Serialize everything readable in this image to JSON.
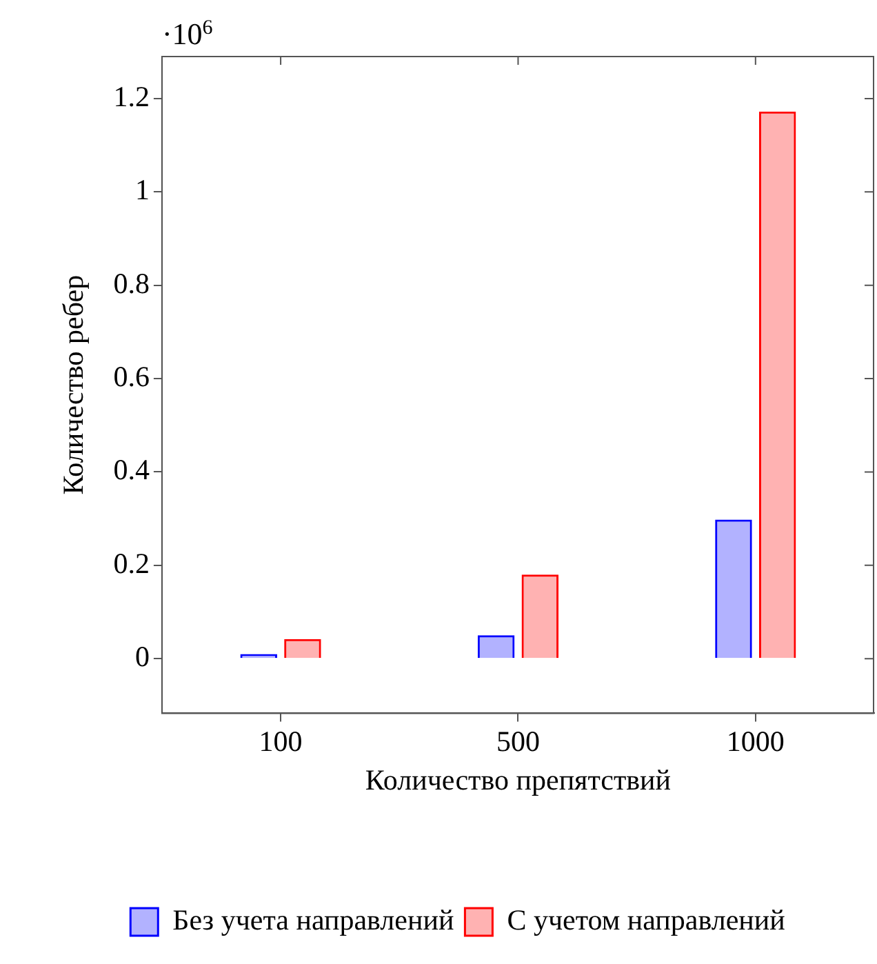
{
  "chart_data": {
    "type": "bar",
    "xlabel": "Количество препятствий",
    "ylabel": "Количество ребер",
    "categories": [
      "100",
      "500",
      "1000"
    ],
    "series": [
      {
        "name": "Без учета направлений",
        "color": "#0000ff",
        "values": [
          0.01,
          0.05,
          0.298
        ]
      },
      {
        "name": "С учетом направлений",
        "color": "#ff0000",
        "values": [
          0.042,
          0.18,
          1.172
        ]
      }
    ],
    "ylim": [
      -0.117,
      1.29
    ],
    "yticks": [
      0,
      0.2,
      0.4,
      0.6,
      0.8,
      1,
      1.2
    ],
    "annotations": [
      "·10$^{6}$"
    ],
    "grid": false,
    "legend": "bottom"
  }
}
